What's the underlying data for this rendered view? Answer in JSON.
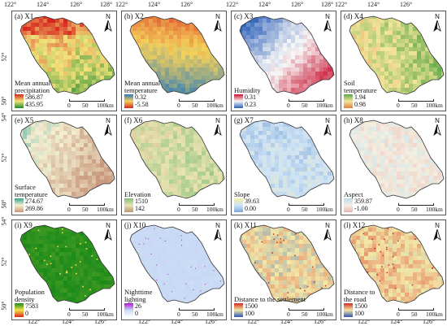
{
  "top_axis": [
    "122°",
    "124°",
    "126°",
    "128°",
    "122°",
    "124°",
    "126°",
    "122°",
    "124°",
    "126°",
    "128°",
    "122°",
    "124°",
    "126°"
  ],
  "bottom_axis": [
    "122°",
    "124°",
    "126°",
    "122°",
    "124°",
    "126°",
    "122°",
    "124°",
    "126°",
    "122°",
    "124°",
    "126°"
  ],
  "lat_labels": [
    "52°",
    "50°",
    "54°",
    "52°",
    "50°",
    "52°",
    "50°",
    "52°",
    "50°",
    "54°",
    "52°",
    "50°",
    "52°",
    "50°",
    "52°",
    "50°"
  ],
  "scale": {
    "t0": "0",
    "t50": "50",
    "t100": "100km"
  },
  "north_letter": "N",
  "panels": [
    {
      "id": "a",
      "label": "(a) X1",
      "legend_title": "Mean annual\nprecipitation",
      "max": "586.87",
      "min": "435.95",
      "colors": [
        "#1f8a2e",
        "#f1e27a",
        "#d7261e"
      ]
    },
    {
      "id": "b",
      "label": "(b) X2",
      "legend_title": "Mean annual\ntemperature",
      "max": "0.32",
      "min": "-5.58",
      "colors": [
        "#d7261e",
        "#f4d05a",
        "#2b7bba"
      ]
    },
    {
      "id": "c",
      "label": "(c) X3",
      "legend_title": "Humidity",
      "max": "0.31",
      "min": "0.23",
      "colors": [
        "#2b5fb8",
        "#f7f7f7",
        "#c8102e"
      ]
    },
    {
      "id": "d",
      "label": "(d) X4",
      "legend_title": "Soil\ntemperature",
      "max": "1.94",
      "min": "0.98",
      "colors": [
        "#e0823a",
        "#f3e59a",
        "#5aa845"
      ]
    },
    {
      "id": "e",
      "label": "(e) X5",
      "legend_title": "Surface\ntemperature",
      "max": "274.67",
      "min": "269.86",
      "colors": [
        "#c8967a",
        "#f3efd2",
        "#3aa38f"
      ]
    },
    {
      "id": "f",
      "label": "(f) X6",
      "legend_title": "Elevation",
      "max": "1510",
      "min": "142",
      "colors": [
        "#b99a72",
        "#e9e3b0",
        "#7fbf7a"
      ]
    },
    {
      "id": "g",
      "label": "(g) X7",
      "legend_title": "Slope",
      "max": "39.63",
      "min": "0.00",
      "colors": [
        "#7fa8d8",
        "#cfe3f5",
        "#f4f0a6"
      ]
    },
    {
      "id": "h",
      "label": "(h) X8",
      "legend_title": "Aspect",
      "max": "359.87",
      "min": "-1.00",
      "colors": [
        "#e9b4b0",
        "#f4efe0",
        "#b9dcef"
      ]
    },
    {
      "id": "i",
      "label": "(i) X9",
      "legend_title": "Population\ndensity",
      "max": "7583",
      "min": "0",
      "colors": [
        "#d7261e",
        "#f3e24a",
        "#1a8a1a"
      ]
    },
    {
      "id": "j",
      "label": "(j) X10",
      "legend_title": "Nighttime\nlighting",
      "max": "26",
      "min": "0",
      "colors": [
        "#ffffff",
        "#c6d8f4",
        "#b01ad8"
      ]
    },
    {
      "id": "k",
      "label": "(k) X11",
      "legend_title": "Distance to the settlement",
      "max": "1500",
      "min": "100",
      "colors": [
        "#2a54b0",
        "#f3e8a8",
        "#d52a1e"
      ]
    },
    {
      "id": "l",
      "label": "(l) X12",
      "legend_title": "Distance to\nthe road",
      "max": "1500",
      "min": "100",
      "colors": [
        "#2a54b0",
        "#f3e8a8",
        "#d52a1e"
      ]
    }
  ]
}
